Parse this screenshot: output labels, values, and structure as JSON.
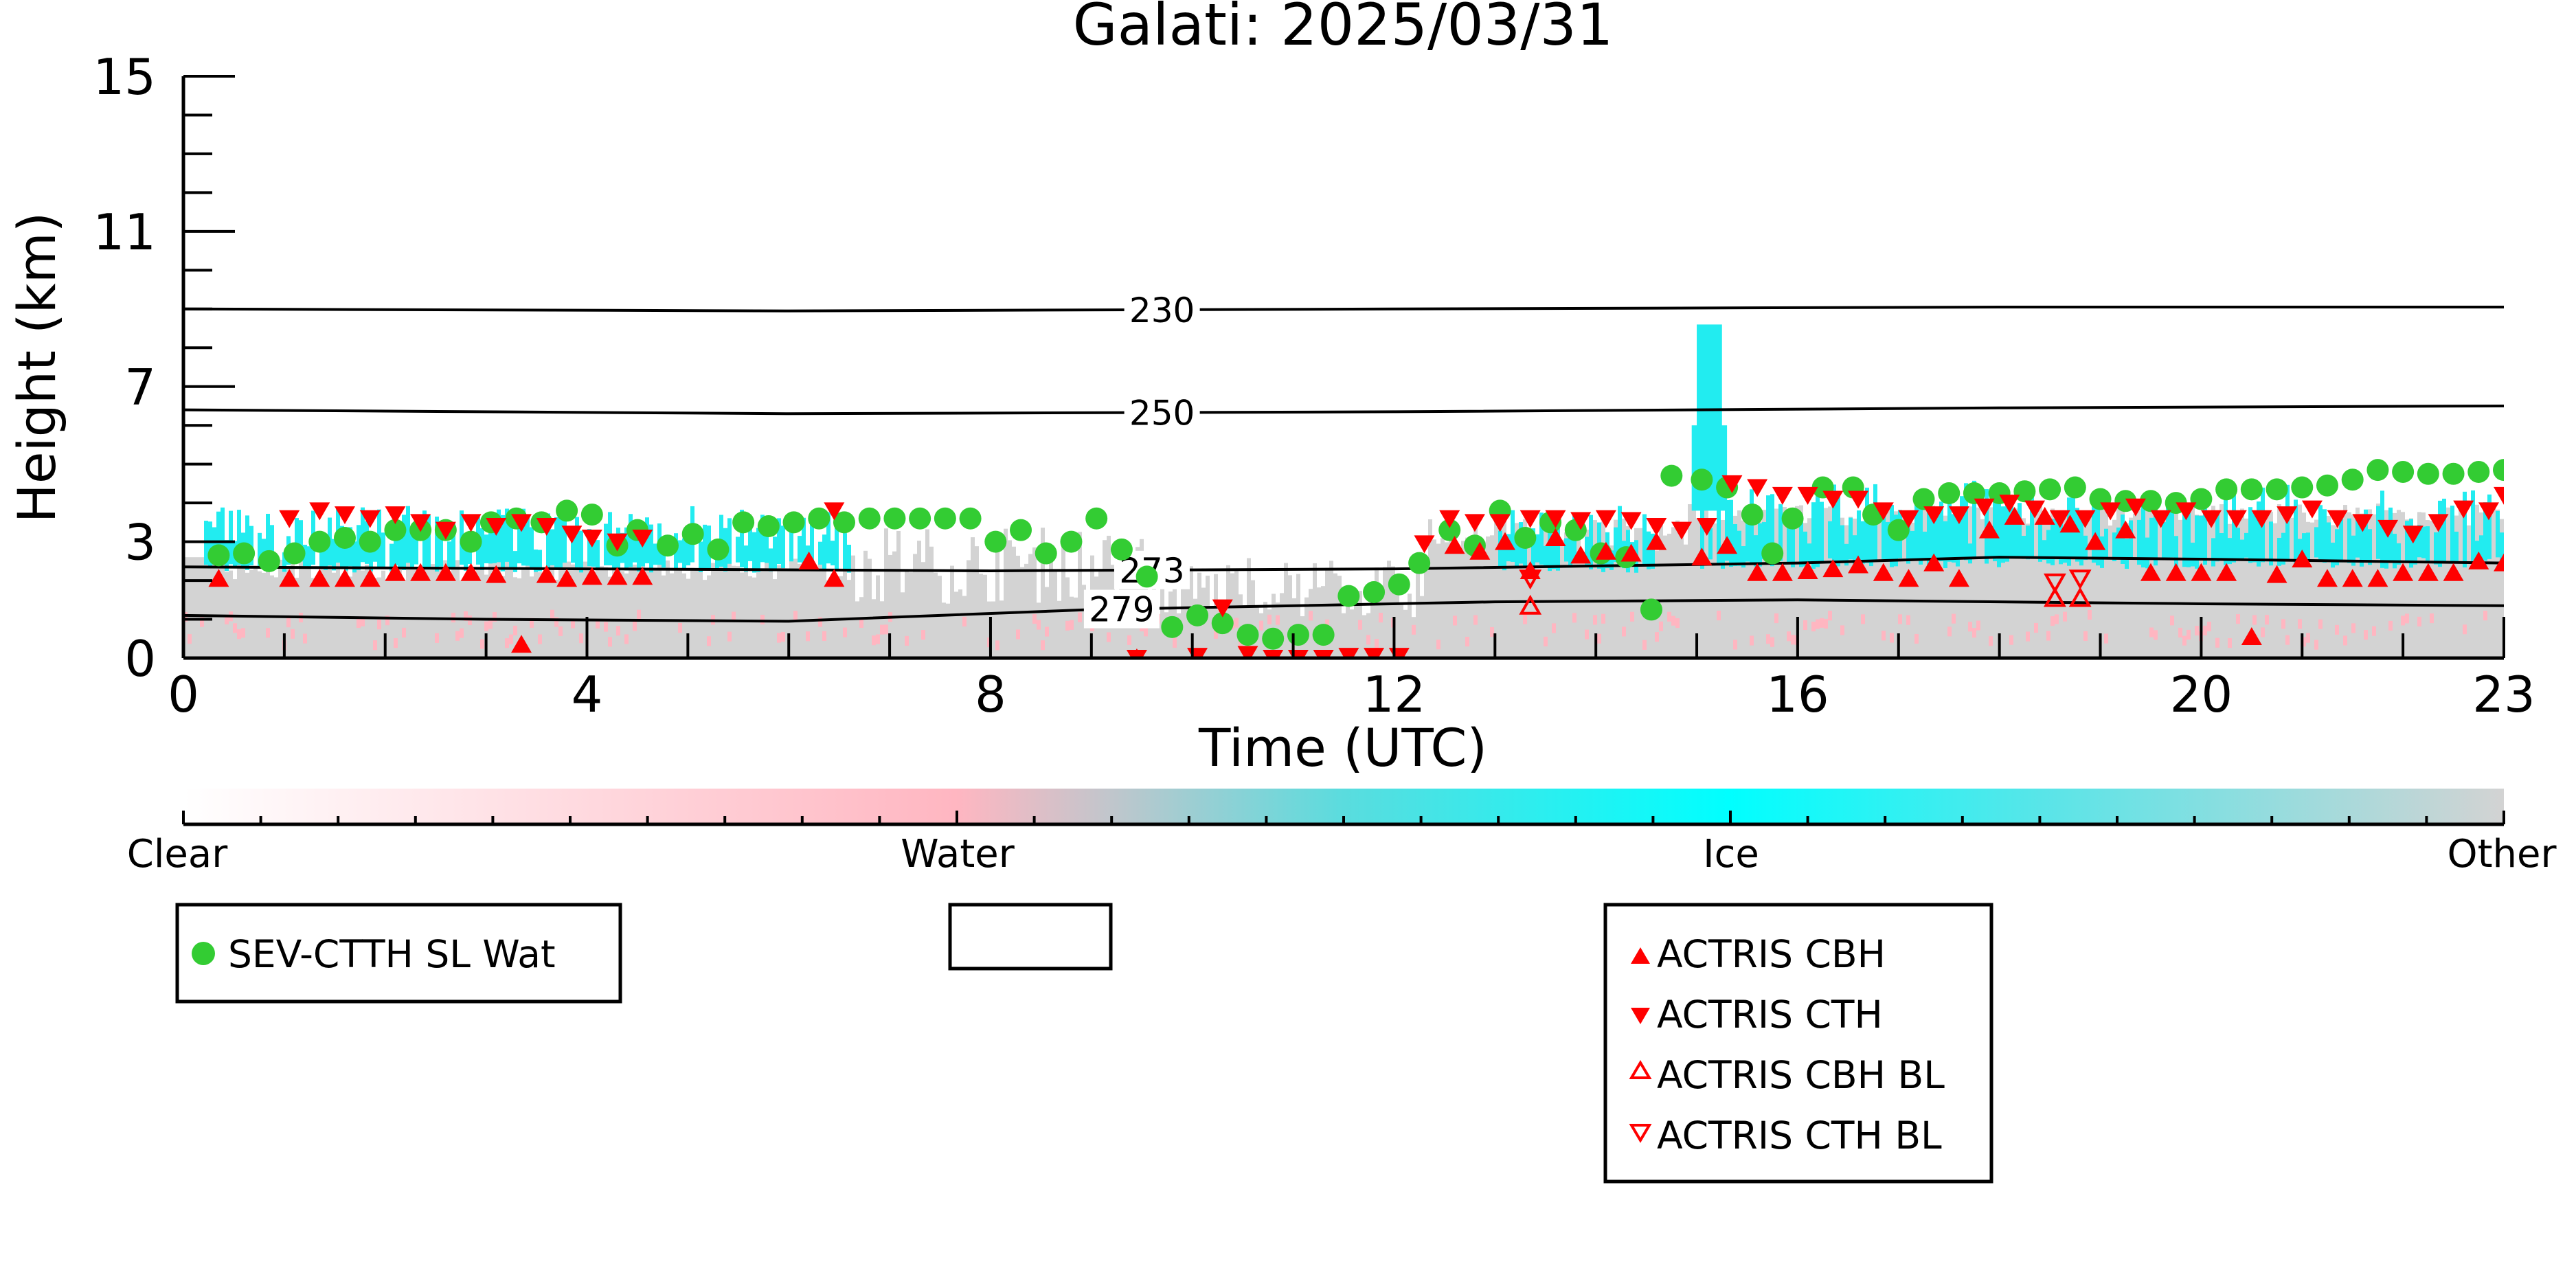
{
  "chart_data": {
    "type": "scatter",
    "title": "Galati: 2025/03/31",
    "xlabel": "Time (UTC)",
    "ylabel": "Height (km)",
    "xlim": [
      0,
      23
    ],
    "ylim": [
      0,
      15
    ],
    "xticks": [
      "0",
      "4",
      "8",
      "12",
      "16",
      "20",
      "23"
    ],
    "yticks": [
      "0",
      "3",
      "7",
      "11",
      "15"
    ],
    "colorbar": {
      "labels": [
        "Clear",
        "Water",
        "Ice",
        "Other"
      ],
      "colors": [
        "#ffffff",
        "#ffb6c1",
        "#00ffff",
        "#d3d3d3"
      ]
    },
    "contours": [
      {
        "label": "230",
        "points": [
          [
            0,
            9.0
          ],
          [
            6,
            8.95
          ],
          [
            12,
            9.0
          ],
          [
            18,
            9.05
          ],
          [
            23,
            9.05
          ]
        ]
      },
      {
        "label": "250",
        "points": [
          [
            0,
            6.4
          ],
          [
            6,
            6.3
          ],
          [
            12,
            6.35
          ],
          [
            18,
            6.45
          ],
          [
            23,
            6.5
          ]
        ]
      },
      {
        "label": "273",
        "points": [
          [
            0,
            2.35
          ],
          [
            4,
            2.3
          ],
          [
            8,
            2.25
          ],
          [
            12,
            2.3
          ],
          [
            16,
            2.45
          ],
          [
            18,
            2.6
          ],
          [
            20,
            2.55
          ],
          [
            23,
            2.45
          ]
        ]
      },
      {
        "label": "279",
        "points": [
          [
            0,
            1.1
          ],
          [
            3,
            1.0
          ],
          [
            6,
            0.95
          ],
          [
            9,
            1.25
          ],
          [
            13,
            1.45
          ],
          [
            16,
            1.5
          ],
          [
            20,
            1.4
          ],
          [
            23,
            1.35
          ]
        ]
      }
    ],
    "series": [
      {
        "name": "SEV-CTTH SL Wat",
        "marker": "circle",
        "color": "#33cc33",
        "x": [
          0.35,
          0.6,
          0.85,
          1.1,
          1.35,
          1.6,
          1.85,
          2.1,
          2.35,
          2.6,
          2.85,
          3.05,
          3.3,
          3.55,
          3.8,
          4.05,
          4.3,
          4.5,
          4.8,
          5.05,
          5.3,
          5.55,
          5.8,
          6.05,
          6.3,
          6.55,
          6.8,
          7.05,
          7.3,
          7.55,
          7.8,
          8.05,
          8.3,
          8.55,
          8.8,
          9.05,
          9.3,
          9.55,
          9.8,
          10.05,
          10.3,
          10.55,
          10.8,
          11.05,
          11.3,
          11.55,
          11.8,
          12.05,
          12.25,
          12.55,
          12.8,
          13.05,
          13.3,
          13.55,
          13.8,
          14.05,
          14.3,
          14.55,
          14.75,
          15.05,
          15.3,
          15.55,
          15.75,
          15.95,
          16.25,
          16.55,
          16.75,
          17.0,
          17.25,
          17.5,
          17.75,
          18.0,
          18.25,
          18.5,
          18.75,
          19.0,
          19.25,
          19.5,
          19.75,
          20.0,
          20.25,
          20.5,
          20.75,
          21.0,
          21.25,
          21.5,
          21.75,
          22.0,
          22.25,
          22.5,
          22.75,
          23.0
        ],
        "y": [
          2.65,
          2.7,
          2.5,
          2.7,
          3.0,
          3.1,
          3.0,
          3.3,
          3.3,
          3.3,
          3.0,
          3.5,
          3.6,
          3.5,
          3.8,
          3.7,
          2.9,
          3.3,
          2.9,
          3.2,
          2.8,
          3.5,
          3.4,
          3.5,
          3.6,
          3.5,
          3.6,
          3.6,
          3.6,
          3.6,
          3.6,
          3.0,
          3.3,
          2.7,
          3.0,
          3.6,
          2.8,
          2.1,
          0.8,
          1.1,
          0.9,
          0.6,
          0.5,
          0.6,
          0.6,
          1.6,
          1.7,
          1.9,
          2.45,
          3.3,
          2.9,
          3.8,
          3.1,
          3.5,
          3.3,
          2.7,
          2.6,
          1.25,
          4.7,
          4.6,
          4.4,
          3.7,
          2.7,
          3.6,
          4.4,
          4.4,
          3.7,
          3.3,
          4.1,
          4.25,
          4.25,
          4.25,
          4.3,
          4.35,
          4.4,
          4.1,
          4.05,
          4.05,
          4.0,
          4.1,
          4.35,
          4.35,
          4.35,
          4.4,
          4.45,
          4.6,
          4.85,
          4.8,
          4.75,
          4.75,
          4.8,
          4.85
        ]
      },
      {
        "name": "ACTRIS CBH",
        "marker": "triangle-up",
        "color": "#ff0000",
        "x": [
          0.35,
          1.05,
          1.35,
          1.6,
          1.85,
          2.1,
          2.35,
          2.6,
          2.85,
          3.1,
          3.35,
          3.6,
          3.8,
          4.05,
          4.3,
          4.55,
          6.2,
          6.45,
          9.45,
          12.6,
          12.85,
          13.1,
          13.35,
          13.6,
          13.85,
          14.1,
          14.35,
          14.6,
          15.05,
          15.3,
          15.6,
          15.85,
          16.1,
          16.35,
          16.6,
          16.85,
          17.1,
          17.35,
          17.6,
          17.9,
          18.15,
          18.45,
          18.7,
          18.95,
          19.25,
          19.5,
          19.75,
          20.0,
          20.25,
          20.5,
          20.75,
          21.0,
          21.25,
          21.5,
          21.75,
          22.0,
          22.25,
          22.5,
          22.75,
          23.0
        ],
        "y": [
          2.05,
          2.05,
          2.05,
          2.05,
          2.05,
          2.2,
          2.2,
          2.2,
          2.2,
          2.15,
          0.35,
          2.15,
          2.05,
          2.1,
          2.1,
          2.1,
          2.5,
          2.05,
          0.0,
          2.9,
          2.75,
          3.0,
          2.25,
          3.1,
          2.65,
          2.75,
          2.7,
          3.0,
          2.6,
          2.9,
          2.2,
          2.2,
          2.25,
          2.3,
          2.4,
          2.2,
          2.05,
          2.45,
          2.05,
          3.3,
          3.65,
          3.65,
          3.45,
          3.0,
          3.3,
          2.2,
          2.2,
          2.2,
          2.2,
          0.55,
          2.15,
          2.55,
          2.05,
          2.05,
          2.05,
          2.2,
          2.2,
          2.2,
          2.5,
          2.45
        ]
      },
      {
        "name": "ACTRIS CTH",
        "marker": "triangle-down",
        "color": "#ff0000",
        "x": [
          1.05,
          1.35,
          1.6,
          1.85,
          2.1,
          2.35,
          2.6,
          2.85,
          3.1,
          3.35,
          3.6,
          3.85,
          4.05,
          4.3,
          4.55,
          6.45,
          9.45,
          10.05,
          10.3,
          10.55,
          10.8,
          11.05,
          11.3,
          11.55,
          11.8,
          12.05,
          12.3,
          12.55,
          12.8,
          13.05,
          13.35,
          13.6,
          13.85,
          14.1,
          14.35,
          14.6,
          14.85,
          15.1,
          15.35,
          15.6,
          15.85,
          16.1,
          16.35,
          16.6,
          16.85,
          17.1,
          17.35,
          17.6,
          17.85,
          18.1,
          18.35,
          18.6,
          18.85,
          19.1,
          19.35,
          19.6,
          19.85,
          20.1,
          20.35,
          20.6,
          20.85,
          21.1,
          21.35,
          21.6,
          21.85,
          22.1,
          22.35,
          22.6,
          22.85,
          23.0
        ],
        "y": [
          3.6,
          3.8,
          3.7,
          3.6,
          3.7,
          3.5,
          3.3,
          3.5,
          3.4,
          3.5,
          3.4,
          3.2,
          3.1,
          3.0,
          3.1,
          3.8,
          0.0,
          0.05,
          1.3,
          0.1,
          0.0,
          0.0,
          0.0,
          0.05,
          0.05,
          0.05,
          2.95,
          3.6,
          3.5,
          3.5,
          3.6,
          3.6,
          3.55,
          3.6,
          3.55,
          3.4,
          3.3,
          3.4,
          4.5,
          4.4,
          4.2,
          4.2,
          4.1,
          4.1,
          3.8,
          3.6,
          3.7,
          3.7,
          3.9,
          4.0,
          3.85,
          3.6,
          3.6,
          3.8,
          3.9,
          3.6,
          3.8,
          3.6,
          3.6,
          3.6,
          3.7,
          3.85,
          3.6,
          3.5,
          3.35,
          3.2,
          3.5,
          3.85,
          3.8,
          4.2
        ]
      },
      {
        "name": "ACTRIS CBH BL",
        "marker": "triangle-up-open",
        "color": "#ff0000",
        "x": [
          13.35,
          18.55,
          18.8
        ],
        "y": [
          1.35,
          1.55,
          1.55
        ]
      },
      {
        "name": "ACTRIS CTH BL",
        "marker": "triangle-down-open",
        "color": "#ff0000",
        "x": [
          13.35,
          18.55,
          18.8
        ],
        "y": [
          2.05,
          1.95,
          2.05
        ]
      }
    ],
    "legend": [
      {
        "position": "bottom-left",
        "entries": [
          "SEV-CTTH SL Wat"
        ]
      },
      {
        "position": "bottom-center",
        "entries": []
      },
      {
        "position": "bottom-right",
        "entries": [
          "ACTRIS CBH",
          "ACTRIS CTH",
          "ACTRIS CBH BL",
          "ACTRIS CTH BL"
        ]
      }
    ]
  }
}
